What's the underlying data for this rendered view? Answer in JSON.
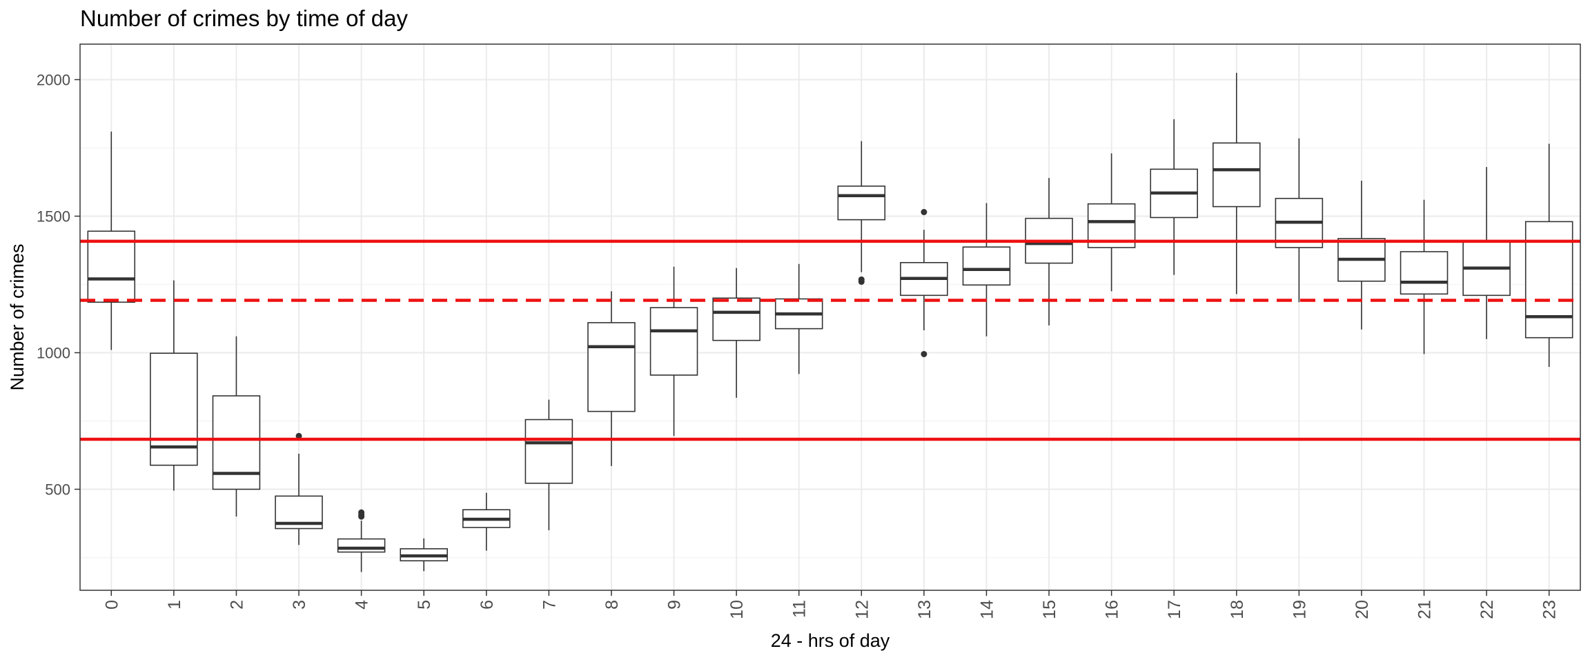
{
  "chart_data": {
    "type": "boxplot",
    "title": "Number of crimes by time of day",
    "xlabel": "24 - hrs of day",
    "ylabel": "Number of crimes",
    "categories": [
      "0",
      "1",
      "2",
      "3",
      "4",
      "5",
      "6",
      "7",
      "8",
      "9",
      "10",
      "11",
      "12",
      "13",
      "14",
      "15",
      "16",
      "17",
      "18",
      "19",
      "20",
      "21",
      "22",
      "23"
    ],
    "ylim": [
      130,
      2130
    ],
    "y_ticks": [
      500,
      1000,
      1500,
      2000
    ],
    "grid": true,
    "theme": "bw",
    "boxes": [
      {
        "hour": "0",
        "whisker_low": 1010,
        "q1": 1185,
        "median": 1270,
        "q3": 1445,
        "whisker_high": 1810,
        "outliers": []
      },
      {
        "hour": "1",
        "whisker_low": 495,
        "q1": 588,
        "median": 655,
        "q3": 998,
        "whisker_high": 1265,
        "outliers": []
      },
      {
        "hour": "2",
        "whisker_low": 400,
        "q1": 500,
        "median": 558,
        "q3": 842,
        "whisker_high": 1060,
        "outliers": []
      },
      {
        "hour": "3",
        "whisker_low": 296,
        "q1": 356,
        "median": 375,
        "q3": 475,
        "whisker_high": 630,
        "outliers": [
          695
        ]
      },
      {
        "hour": "4",
        "whisker_low": 197,
        "q1": 270,
        "median": 284,
        "q3": 318,
        "whisker_high": 385,
        "outliers": [
          400,
          407,
          415
        ]
      },
      {
        "hour": "5",
        "whisker_low": 200,
        "q1": 238,
        "median": 256,
        "q3": 282,
        "whisker_high": 320,
        "outliers": []
      },
      {
        "hour": "6",
        "whisker_low": 275,
        "q1": 360,
        "median": 390,
        "q3": 425,
        "whisker_high": 487,
        "outliers": []
      },
      {
        "hour": "7",
        "whisker_low": 350,
        "q1": 522,
        "median": 670,
        "q3": 755,
        "whisker_high": 828,
        "outliers": []
      },
      {
        "hour": "8",
        "whisker_low": 585,
        "q1": 785,
        "median": 1022,
        "q3": 1110,
        "whisker_high": 1225,
        "outliers": []
      },
      {
        "hour": "9",
        "whisker_low": 695,
        "q1": 918,
        "median": 1080,
        "q3": 1165,
        "whisker_high": 1315,
        "outliers": []
      },
      {
        "hour": "10",
        "whisker_low": 835,
        "q1": 1045,
        "median": 1148,
        "q3": 1200,
        "whisker_high": 1310,
        "outliers": []
      },
      {
        "hour": "11",
        "whisker_low": 922,
        "q1": 1088,
        "median": 1142,
        "q3": 1197,
        "whisker_high": 1325,
        "outliers": []
      },
      {
        "hour": "12",
        "whisker_low": 1295,
        "q1": 1487,
        "median": 1575,
        "q3": 1610,
        "whisker_high": 1775,
        "outliers": [
          1260,
          1268
        ]
      },
      {
        "hour": "13",
        "whisker_low": 1082,
        "q1": 1210,
        "median": 1272,
        "q3": 1330,
        "whisker_high": 1450,
        "outliers": [
          995,
          1515
        ]
      },
      {
        "hour": "14",
        "whisker_low": 1060,
        "q1": 1248,
        "median": 1305,
        "q3": 1387,
        "whisker_high": 1548,
        "outliers": []
      },
      {
        "hour": "15",
        "whisker_low": 1100,
        "q1": 1328,
        "median": 1400,
        "q3": 1492,
        "whisker_high": 1640,
        "outliers": []
      },
      {
        "hour": "16",
        "whisker_low": 1225,
        "q1": 1385,
        "median": 1480,
        "q3": 1545,
        "whisker_high": 1730,
        "outliers": []
      },
      {
        "hour": "17",
        "whisker_low": 1285,
        "q1": 1495,
        "median": 1585,
        "q3": 1672,
        "whisker_high": 1855,
        "outliers": []
      },
      {
        "hour": "18",
        "whisker_low": 1215,
        "q1": 1535,
        "median": 1670,
        "q3": 1768,
        "whisker_high": 2025,
        "outliers": []
      },
      {
        "hour": "19",
        "whisker_low": 1185,
        "q1": 1385,
        "median": 1478,
        "q3": 1565,
        "whisker_high": 1785,
        "outliers": []
      },
      {
        "hour": "20",
        "whisker_low": 1085,
        "q1": 1262,
        "median": 1342,
        "q3": 1418,
        "whisker_high": 1630,
        "outliers": []
      },
      {
        "hour": "21",
        "whisker_low": 995,
        "q1": 1215,
        "median": 1258,
        "q3": 1370,
        "whisker_high": 1560,
        "outliers": []
      },
      {
        "hour": "22",
        "whisker_low": 1050,
        "q1": 1210,
        "median": 1310,
        "q3": 1405,
        "whisker_high": 1680,
        "outliers": []
      },
      {
        "hour": "23",
        "whisker_low": 948,
        "q1": 1055,
        "median": 1132,
        "q3": 1480,
        "whisker_high": 1765,
        "outliers": []
      }
    ],
    "reference_lines": [
      {
        "y": 1408,
        "style": "solid",
        "color": "#ee1111"
      },
      {
        "y": 1192,
        "style": "dashed",
        "color": "#ee1111"
      },
      {
        "y": 683,
        "style": "solid",
        "color": "#ee1111"
      }
    ]
  },
  "colors": {
    "panel_border": "#333333",
    "grid_major": "#ebebeb",
    "grid_minor": "#f5f5f5",
    "box_stroke": "#333333",
    "box_fill": "#ffffff",
    "reference": "#ee1111"
  }
}
